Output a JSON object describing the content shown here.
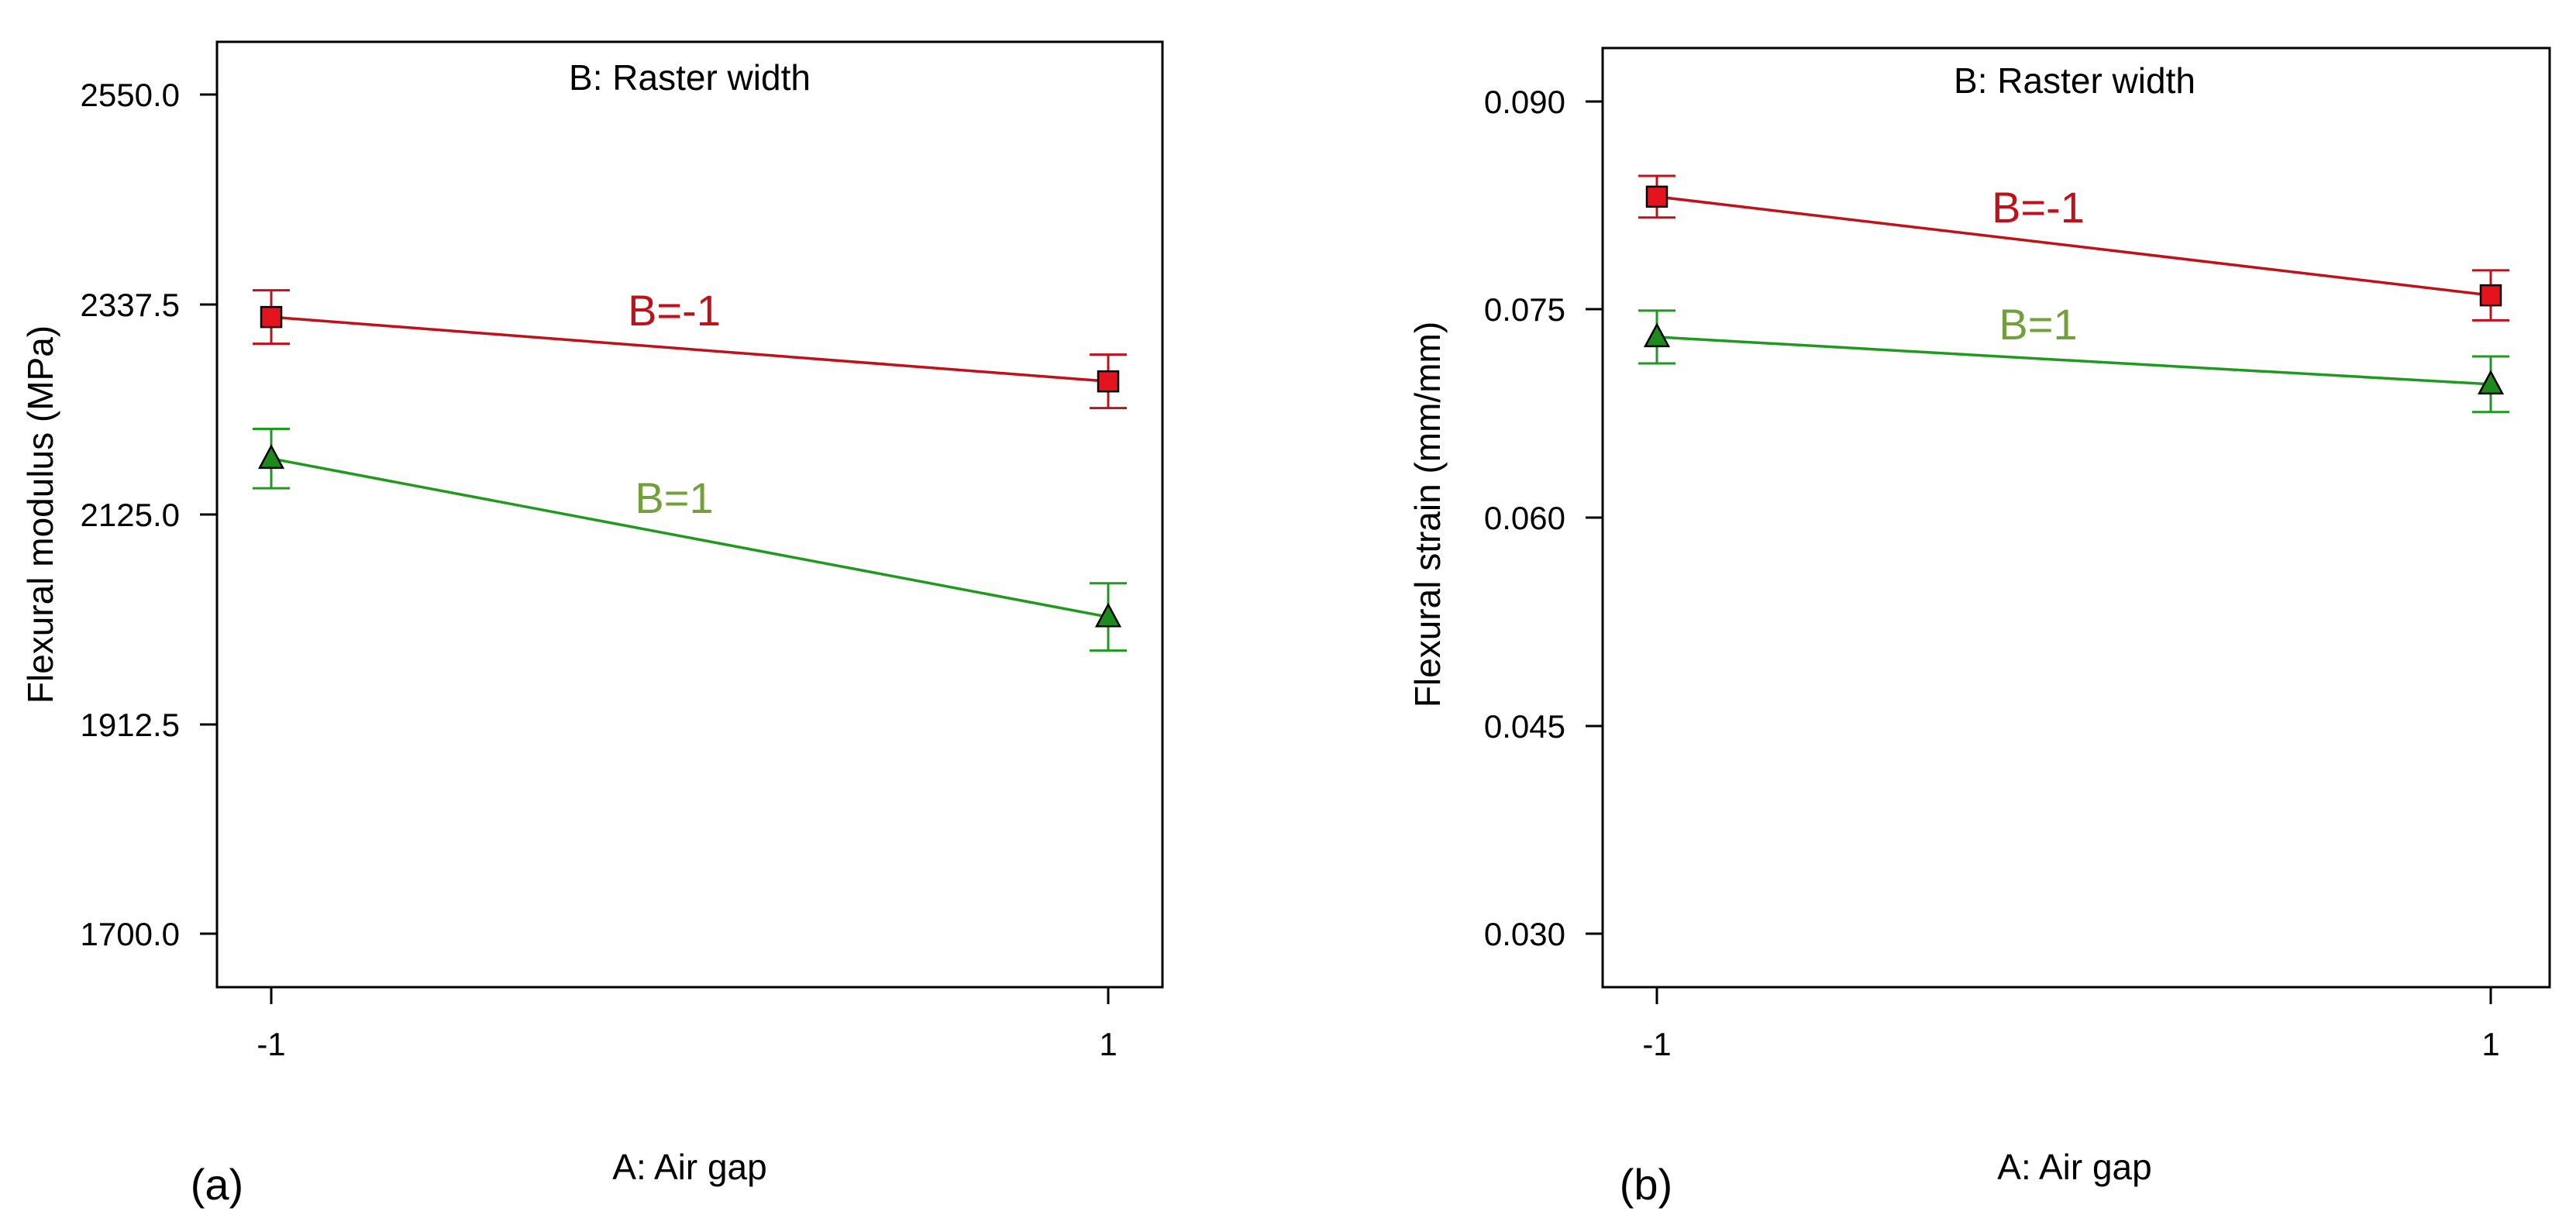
{
  "colors": {
    "red_series": "#c0101a",
    "green_series": "#1f9a1f",
    "red_marker": "#e3141e",
    "green_marker": "#1e8a1e",
    "green_label": "#73a03c",
    "axis": "#000000"
  },
  "chart_data": [
    {
      "type": "line",
      "panel_label": "(a)",
      "title": "B: Raster width",
      "xlabel": "A: Air gap",
      "ylabel": "Flexural modulus (MPa)",
      "categories": [
        "-1",
        "1"
      ],
      "y_ticks": [
        "1700.0",
        "1912.5",
        "2125.0",
        "2337.5",
        "2550.0"
      ],
      "ylim": [
        1650,
        2605
      ],
      "series": [
        {
          "name": "B=-1",
          "color_key": "red_series",
          "marker": "square",
          "values": [
            2327,
            2262
          ],
          "error": [
            27,
            27
          ]
        },
        {
          "name": "B=1",
          "color_key": "green_series",
          "marker": "triangle",
          "values": [
            2184,
            2024
          ],
          "error": [
            30,
            34
          ]
        }
      ]
    },
    {
      "type": "line",
      "panel_label": "(b)",
      "title": "B: Raster width",
      "xlabel": "A: Air gap",
      "ylabel": "Flexural strain (mm/mm)",
      "categories": [
        "-1",
        "1"
      ],
      "y_ticks": [
        "0.030",
        "0.045",
        "0.060",
        "0.075",
        "0.090"
      ],
      "ylim": [
        0.0263,
        0.0939
      ],
      "series": [
        {
          "name": "B=-1",
          "color_key": "red_series",
          "marker": "square",
          "values": [
            0.0832,
            0.0761
          ],
          "error": [
            0.0015,
            0.0018
          ]
        },
        {
          "name": "B=1",
          "color_key": "green_series",
          "marker": "triangle",
          "values": [
            0.0731,
            0.0697
          ],
          "error": [
            0.0019,
            0.002
          ]
        }
      ]
    }
  ]
}
